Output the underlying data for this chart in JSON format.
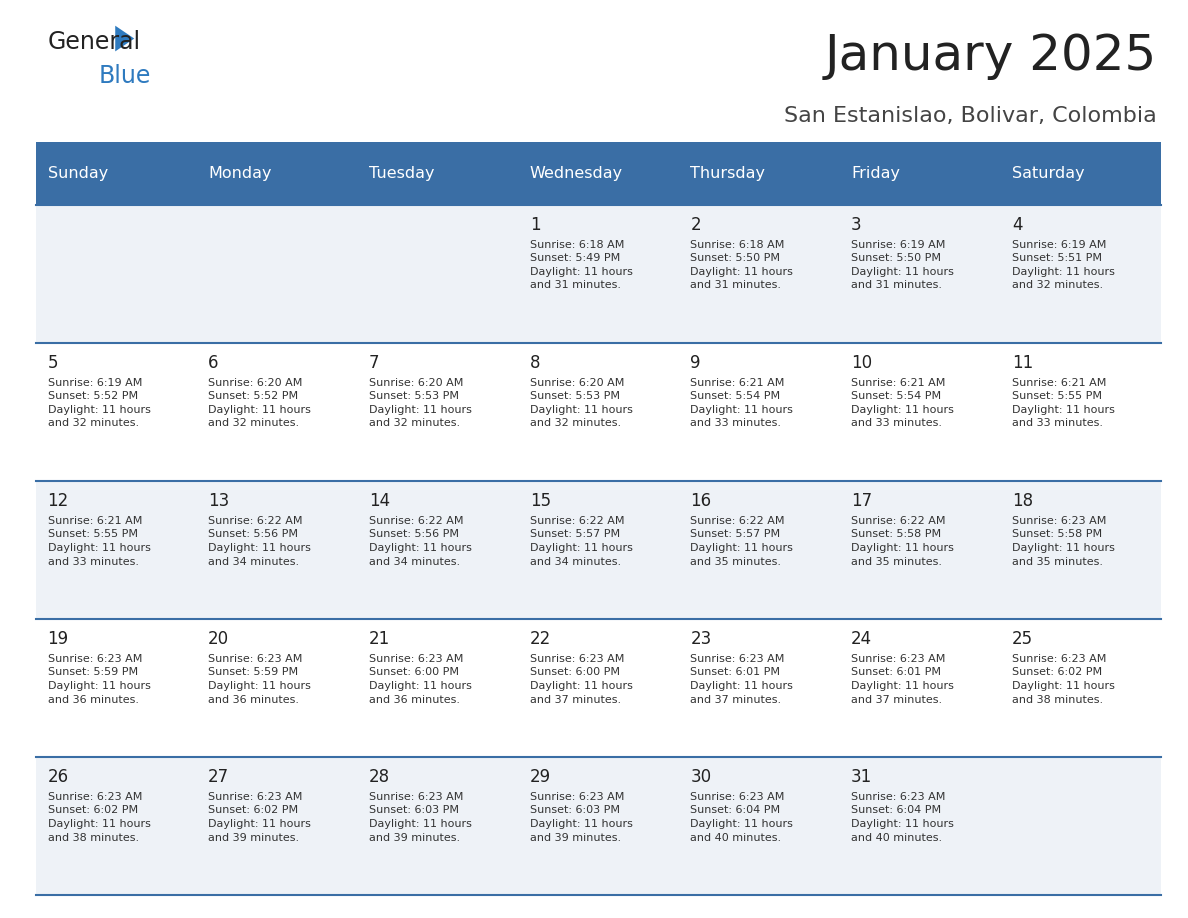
{
  "title": "January 2025",
  "subtitle": "San Estanislao, Bolivar, Colombia",
  "days_of_week": [
    "Sunday",
    "Monday",
    "Tuesday",
    "Wednesday",
    "Thursday",
    "Friday",
    "Saturday"
  ],
  "header_bg": "#3a6ea5",
  "header_text": "#ffffff",
  "row_bg_odd": "#eef2f7",
  "row_bg_even": "#ffffff",
  "cell_border": "#3a6ea5",
  "day_number_color": "#222222",
  "info_text_color": "#333333",
  "title_color": "#222222",
  "subtitle_color": "#444444",
  "logo_general_color": "#222222",
  "logo_blue_color": "#2e7abf",
  "weeks": [
    [
      {
        "day": null,
        "info": ""
      },
      {
        "day": null,
        "info": ""
      },
      {
        "day": null,
        "info": ""
      },
      {
        "day": 1,
        "info": "Sunrise: 6:18 AM\nSunset: 5:49 PM\nDaylight: 11 hours\nand 31 minutes."
      },
      {
        "day": 2,
        "info": "Sunrise: 6:18 AM\nSunset: 5:50 PM\nDaylight: 11 hours\nand 31 minutes."
      },
      {
        "day": 3,
        "info": "Sunrise: 6:19 AM\nSunset: 5:50 PM\nDaylight: 11 hours\nand 31 minutes."
      },
      {
        "day": 4,
        "info": "Sunrise: 6:19 AM\nSunset: 5:51 PM\nDaylight: 11 hours\nand 32 minutes."
      }
    ],
    [
      {
        "day": 5,
        "info": "Sunrise: 6:19 AM\nSunset: 5:52 PM\nDaylight: 11 hours\nand 32 minutes."
      },
      {
        "day": 6,
        "info": "Sunrise: 6:20 AM\nSunset: 5:52 PM\nDaylight: 11 hours\nand 32 minutes."
      },
      {
        "day": 7,
        "info": "Sunrise: 6:20 AM\nSunset: 5:53 PM\nDaylight: 11 hours\nand 32 minutes."
      },
      {
        "day": 8,
        "info": "Sunrise: 6:20 AM\nSunset: 5:53 PM\nDaylight: 11 hours\nand 32 minutes."
      },
      {
        "day": 9,
        "info": "Sunrise: 6:21 AM\nSunset: 5:54 PM\nDaylight: 11 hours\nand 33 minutes."
      },
      {
        "day": 10,
        "info": "Sunrise: 6:21 AM\nSunset: 5:54 PM\nDaylight: 11 hours\nand 33 minutes."
      },
      {
        "day": 11,
        "info": "Sunrise: 6:21 AM\nSunset: 5:55 PM\nDaylight: 11 hours\nand 33 minutes."
      }
    ],
    [
      {
        "day": 12,
        "info": "Sunrise: 6:21 AM\nSunset: 5:55 PM\nDaylight: 11 hours\nand 33 minutes."
      },
      {
        "day": 13,
        "info": "Sunrise: 6:22 AM\nSunset: 5:56 PM\nDaylight: 11 hours\nand 34 minutes."
      },
      {
        "day": 14,
        "info": "Sunrise: 6:22 AM\nSunset: 5:56 PM\nDaylight: 11 hours\nand 34 minutes."
      },
      {
        "day": 15,
        "info": "Sunrise: 6:22 AM\nSunset: 5:57 PM\nDaylight: 11 hours\nand 34 minutes."
      },
      {
        "day": 16,
        "info": "Sunrise: 6:22 AM\nSunset: 5:57 PM\nDaylight: 11 hours\nand 35 minutes."
      },
      {
        "day": 17,
        "info": "Sunrise: 6:22 AM\nSunset: 5:58 PM\nDaylight: 11 hours\nand 35 minutes."
      },
      {
        "day": 18,
        "info": "Sunrise: 6:23 AM\nSunset: 5:58 PM\nDaylight: 11 hours\nand 35 minutes."
      }
    ],
    [
      {
        "day": 19,
        "info": "Sunrise: 6:23 AM\nSunset: 5:59 PM\nDaylight: 11 hours\nand 36 minutes."
      },
      {
        "day": 20,
        "info": "Sunrise: 6:23 AM\nSunset: 5:59 PM\nDaylight: 11 hours\nand 36 minutes."
      },
      {
        "day": 21,
        "info": "Sunrise: 6:23 AM\nSunset: 6:00 PM\nDaylight: 11 hours\nand 36 minutes."
      },
      {
        "day": 22,
        "info": "Sunrise: 6:23 AM\nSunset: 6:00 PM\nDaylight: 11 hours\nand 37 minutes."
      },
      {
        "day": 23,
        "info": "Sunrise: 6:23 AM\nSunset: 6:01 PM\nDaylight: 11 hours\nand 37 minutes."
      },
      {
        "day": 24,
        "info": "Sunrise: 6:23 AM\nSunset: 6:01 PM\nDaylight: 11 hours\nand 37 minutes."
      },
      {
        "day": 25,
        "info": "Sunrise: 6:23 AM\nSunset: 6:02 PM\nDaylight: 11 hours\nand 38 minutes."
      }
    ],
    [
      {
        "day": 26,
        "info": "Sunrise: 6:23 AM\nSunset: 6:02 PM\nDaylight: 11 hours\nand 38 minutes."
      },
      {
        "day": 27,
        "info": "Sunrise: 6:23 AM\nSunset: 6:02 PM\nDaylight: 11 hours\nand 39 minutes."
      },
      {
        "day": 28,
        "info": "Sunrise: 6:23 AM\nSunset: 6:03 PM\nDaylight: 11 hours\nand 39 minutes."
      },
      {
        "day": 29,
        "info": "Sunrise: 6:23 AM\nSunset: 6:03 PM\nDaylight: 11 hours\nand 39 minutes."
      },
      {
        "day": 30,
        "info": "Sunrise: 6:23 AM\nSunset: 6:04 PM\nDaylight: 11 hours\nand 40 minutes."
      },
      {
        "day": 31,
        "info": "Sunrise: 6:23 AM\nSunset: 6:04 PM\nDaylight: 11 hours\nand 40 minutes."
      },
      {
        "day": null,
        "info": ""
      }
    ]
  ]
}
